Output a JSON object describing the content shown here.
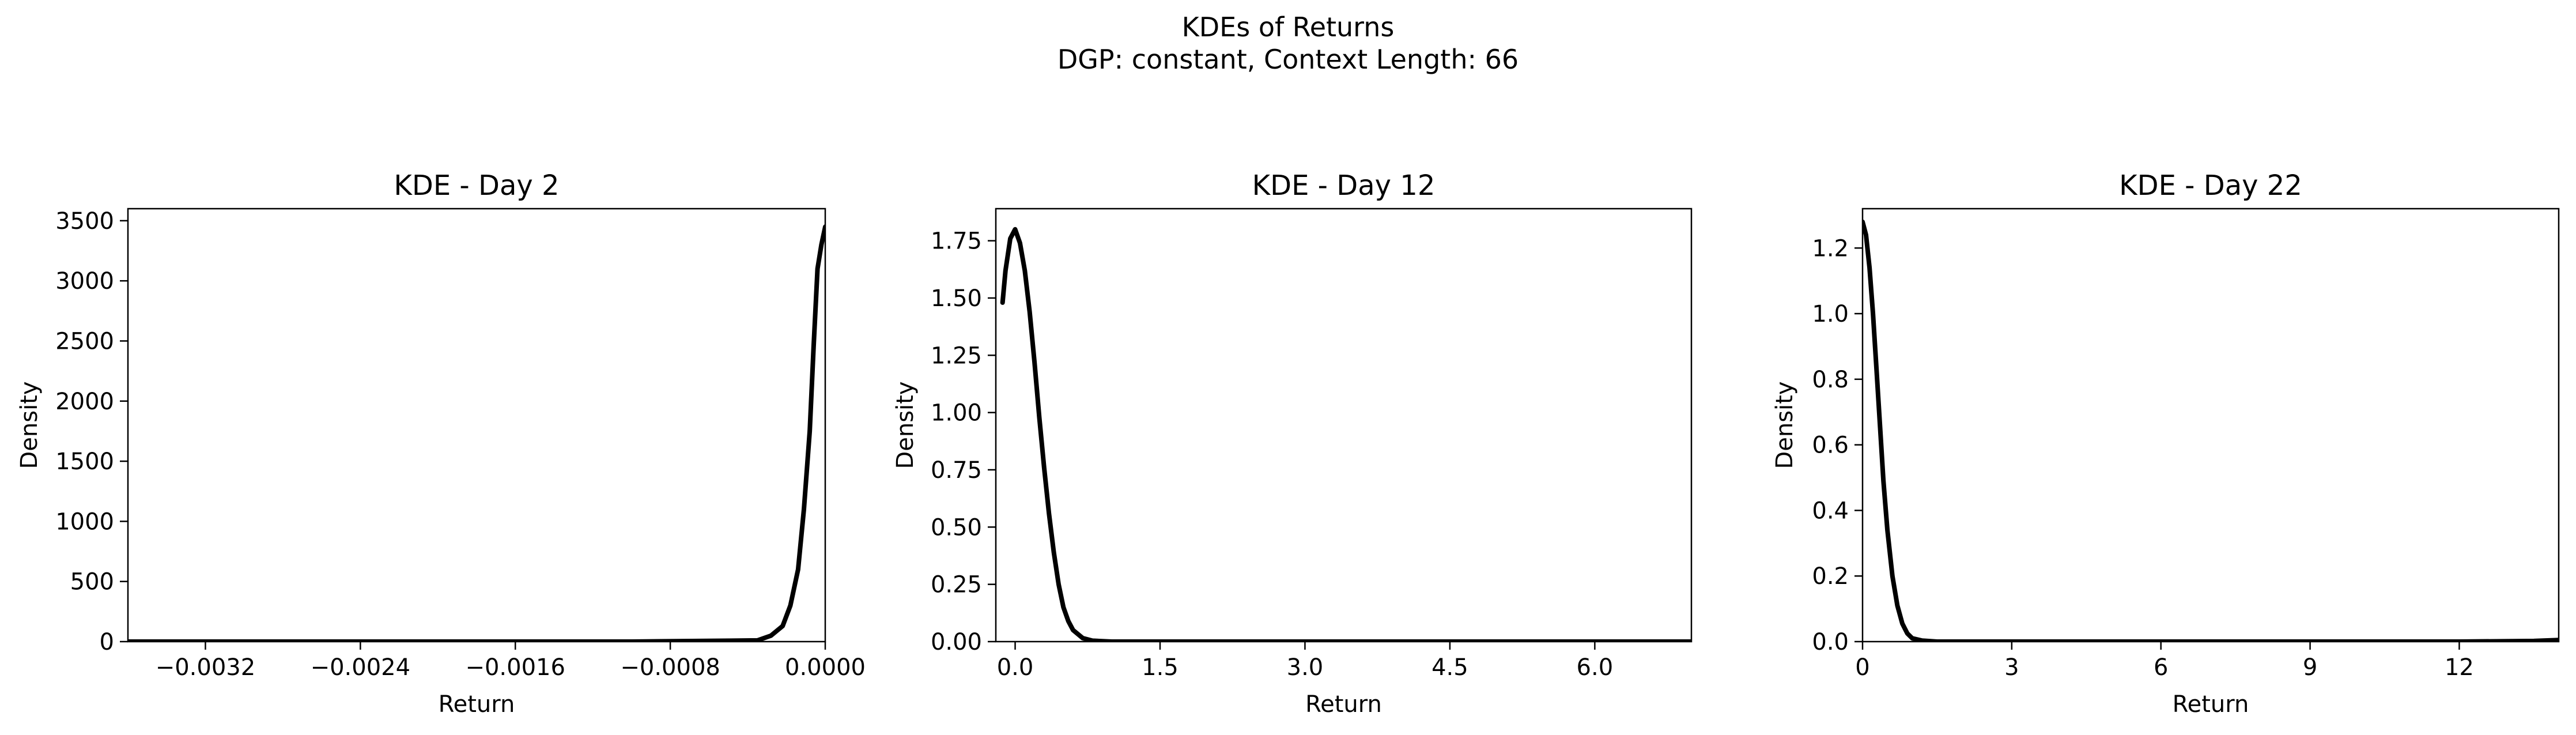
{
  "figure": {
    "title_line1": "KDEs of Returns",
    "title_line2": "DGP: constant, Context Length: 66"
  },
  "chart_data": [
    {
      "type": "line",
      "title": "KDE - Day 2",
      "xlabel": "Return",
      "ylabel": "Density",
      "xlim": [
        -0.0036,
        0.0
      ],
      "ylim": [
        0,
        3600
      ],
      "xticks": [
        -0.0032,
        -0.0024,
        -0.0016,
        -0.0008,
        0.0
      ],
      "xtick_labels": [
        "−0.0032",
        "−0.0024",
        "−0.0016",
        "−0.0008",
        "0.0000"
      ],
      "yticks": [
        0,
        500,
        1000,
        1500,
        2000,
        2500,
        3000,
        3500
      ],
      "ytick_labels": [
        "0",
        "500",
        "1000",
        "1500",
        "2000",
        "2500",
        "3000",
        "3500"
      ],
      "grid": false,
      "series": [
        {
          "color": "#000000",
          "x": [
            -0.0036,
            -0.001,
            -0.00035,
            -0.00028,
            -0.00022,
            -0.00018,
            -0.00014,
            -0.00011,
            -8e-05,
            -6e-05,
            -4e-05,
            -2e-05,
            0.0
          ],
          "y": [
            0,
            0,
            10,
            50,
            130,
            300,
            600,
            1100,
            1750,
            2450,
            3100,
            3300,
            3450
          ]
        }
      ]
    },
    {
      "type": "line",
      "title": "KDE - Day 12",
      "xlabel": "Return",
      "ylabel": "Density",
      "xlim": [
        -0.2,
        7.0
      ],
      "ylim": [
        0,
        1.89
      ],
      "xticks": [
        0.0,
        1.5,
        3.0,
        4.5,
        6.0
      ],
      "xtick_labels": [
        "0.0",
        "1.5",
        "3.0",
        "4.5",
        "6.0"
      ],
      "yticks": [
        0.0,
        0.25,
        0.5,
        0.75,
        1.0,
        1.25,
        1.5,
        1.75
      ],
      "ytick_labels": [
        "0.00",
        "0.25",
        "0.50",
        "0.75",
        "1.00",
        "1.25",
        "1.50",
        "1.75"
      ],
      "grid": false,
      "series": [
        {
          "color": "#000000",
          "x": [
            -0.13,
            -0.1,
            -0.05,
            0.0,
            0.05,
            0.1,
            0.15,
            0.2,
            0.25,
            0.3,
            0.35,
            0.4,
            0.45,
            0.5,
            0.55,
            0.6,
            0.7,
            0.8,
            1.0,
            1.5,
            7.0
          ],
          "y": [
            1.48,
            1.62,
            1.76,
            1.8,
            1.74,
            1.62,
            1.44,
            1.22,
            0.98,
            0.76,
            0.56,
            0.39,
            0.25,
            0.15,
            0.09,
            0.05,
            0.015,
            0.004,
            0.0,
            0.0,
            0.0
          ]
        }
      ]
    },
    {
      "type": "line",
      "title": "KDE - Day 22",
      "xlabel": "Return",
      "ylabel": "Density",
      "xlim": [
        0,
        14.0
      ],
      "ylim": [
        0,
        1.32
      ],
      "xticks": [
        0,
        3,
        6,
        9,
        12
      ],
      "xtick_labels": [
        "0",
        "3",
        "6",
        "9",
        "12"
      ],
      "yticks": [
        0.0,
        0.2,
        0.4,
        0.6,
        0.8,
        1.0,
        1.2
      ],
      "ytick_labels": [
        "0.0",
        "0.2",
        "0.4",
        "0.6",
        "0.8",
        "1.0",
        "1.2"
      ],
      "grid": false,
      "series": [
        {
          "color": "#000000",
          "x": [
            0.0,
            0.07,
            0.14,
            0.21,
            0.28,
            0.35,
            0.42,
            0.5,
            0.6,
            0.7,
            0.8,
            0.9,
            1.0,
            1.2,
            1.5,
            3.0,
            12.0,
            13.5,
            14.0
          ],
          "y": [
            1.28,
            1.24,
            1.14,
            1.0,
            0.83,
            0.66,
            0.49,
            0.34,
            0.2,
            0.11,
            0.055,
            0.025,
            0.01,
            0.003,
            0.0,
            0.0,
            0.0,
            0.002,
            0.005
          ]
        }
      ]
    }
  ]
}
